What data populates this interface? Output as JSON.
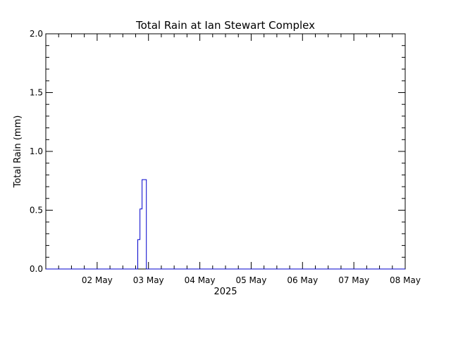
{
  "chart_data": {
    "type": "line",
    "step": true,
    "title": "Total Rain at Ian Stewart Complex",
    "xlabel": "2025",
    "ylabel": "Total Rain (mm)",
    "x_axis": {
      "range": [
        "2025-05-01T00:00",
        "2025-05-08T00:00"
      ],
      "tick_labels": [
        "02 May",
        "03 May",
        "04 May",
        "05 May",
        "06 May",
        "07 May",
        "08 May"
      ],
      "tick_dates": [
        "2025-05-02T00:00",
        "2025-05-03T00:00",
        "2025-05-04T00:00",
        "2025-05-05T00:00",
        "2025-05-06T00:00",
        "2025-05-07T00:00",
        "2025-05-08T00:00"
      ],
      "minor_ticks_per_major": 4
    },
    "y_axis": {
      "range": [
        0,
        2.0
      ],
      "tick_values": [
        0,
        0.5,
        1.0,
        1.5,
        2.0
      ],
      "tick_labels": [
        "0.0",
        "0.5",
        "1.0",
        "1.5",
        "2.0"
      ],
      "minor_ticks_per_major": 5
    },
    "grid": false,
    "legend": "none",
    "series": [
      {
        "color": "#0000cc",
        "x": [
          "2025-05-01T00:00",
          "2025-05-02T19:00",
          "2025-05-02T19:00",
          "2025-05-02T20:00",
          "2025-05-02T20:00",
          "2025-05-02T21:00",
          "2025-05-02T21:00",
          "2025-05-02T23:00",
          "2025-05-02T23:00",
          "2025-05-08T00:00"
        ],
        "y": [
          0,
          0,
          0.25,
          0.25,
          0.51,
          0.51,
          0.76,
          0.76,
          0,
          0
        ]
      }
    ]
  }
}
